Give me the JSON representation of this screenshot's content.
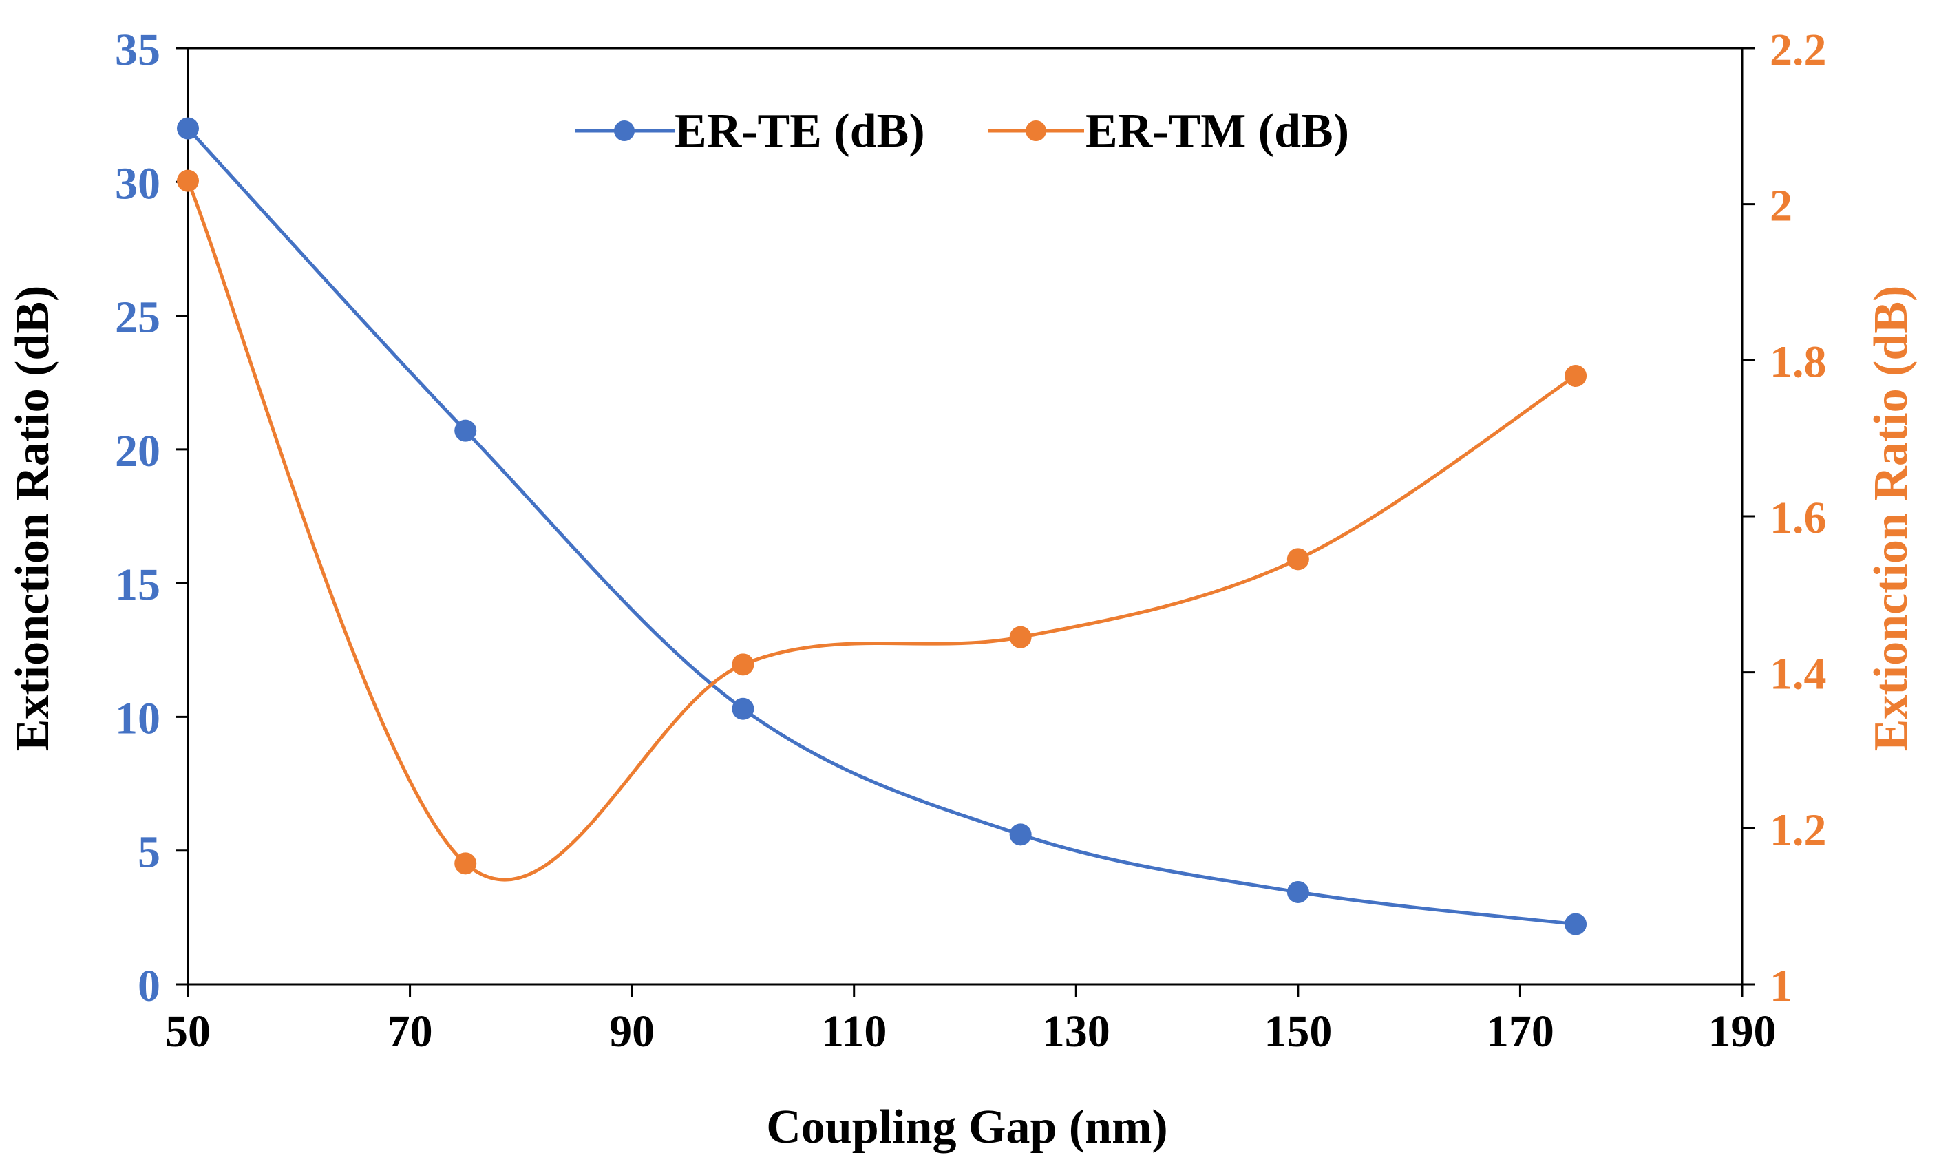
{
  "chart_data": {
    "type": "line",
    "title": "",
    "xlabel": "Coupling Gap (nm)",
    "ylabel_left": "Extionction Ratio (dB)",
    "ylabel_right": "Extionction Ratio (dB)",
    "xlim": [
      50,
      190
    ],
    "xticks": [
      "50",
      "70",
      "90",
      "110",
      "130",
      "150",
      "170",
      "190"
    ],
    "ylim_left": [
      0,
      35
    ],
    "yticks_left": [
      "0",
      "5",
      "10",
      "15",
      "20",
      "25",
      "30",
      "35"
    ],
    "ylim_right": [
      1,
      2.2
    ],
    "yticks_right": [
      "1",
      "1.2",
      "1.4",
      "1.6",
      "1.8",
      "2",
      "2.2"
    ],
    "grid": false,
    "legend_position": "top-center",
    "series": [
      {
        "name": "ER-TE (dB)",
        "axis": "left",
        "color": "#4472C4",
        "x": [
          50,
          75,
          100,
          125,
          150,
          175
        ],
        "values": [
          32.0,
          20.7,
          10.3,
          5.6,
          3.45,
          2.25
        ]
      },
      {
        "name": "ER-TM (dB)",
        "axis": "right",
        "color": "#ED7D31",
        "x": [
          50,
          75,
          100,
          125,
          150,
          175
        ],
        "values": [
          2.03,
          1.155,
          1.41,
          1.445,
          1.545,
          1.78
        ]
      }
    ]
  }
}
